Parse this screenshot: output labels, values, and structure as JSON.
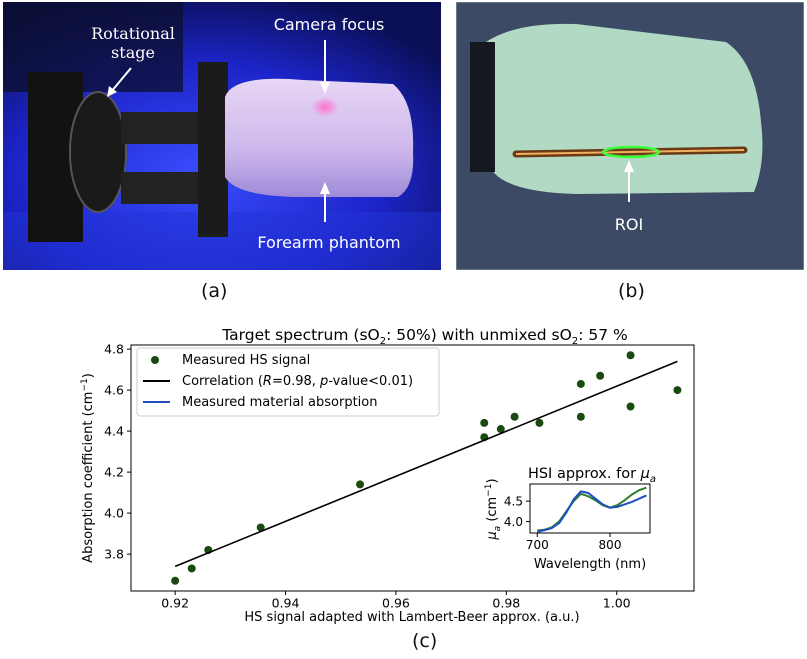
{
  "panel_a": {
    "label": "(a)",
    "annotations": {
      "rotational_stage_1": "Rotational",
      "rotational_stage_2": "stage",
      "camera_focus": "Camera focus",
      "forearm_phantom": "Forearm phantom"
    }
  },
  "panel_b": {
    "label": "(b)",
    "annotations": {
      "roi": "ROI"
    }
  },
  "panel_c": {
    "label": "(c)"
  },
  "colors": {
    "points": "#1a4a10",
    "correlation": "#000000",
    "material": "#1f4fbf",
    "inset_green": "#2e7d2e"
  },
  "chart_data": [
    {
      "type": "scatter",
      "title_parts": [
        "Target spectrum (sO",
        "2",
        ": 50%) with unmixed sO",
        "2",
        ": 57 %"
      ],
      "xlabel": "HS signal adapted with Lambert-Beer approx. (a.u.)",
      "ylabel_parts": [
        "Absorption coefficient (cm",
        "−1",
        ")"
      ],
      "xlim": [
        0.912,
        1.014
      ],
      "ylim": [
        3.62,
        4.82
      ],
      "xticks": [
        0.92,
        0.94,
        0.96,
        0.98,
        1.0
      ],
      "xtick_labels": [
        "0.92",
        "0.94",
        "0.96",
        "0.98",
        "1.00"
      ],
      "yticks": [
        3.8,
        4.0,
        4.2,
        4.4,
        4.6,
        4.8
      ],
      "ytick_labels": [
        "3.8",
        "4.0",
        "4.2",
        "4.4",
        "4.6",
        "4.8"
      ],
      "legend_position": "upper-left",
      "series": [
        {
          "name": "Measured HS signal",
          "kind": "scatter",
          "x": [
            0.92,
            0.923,
            0.926,
            0.9355,
            0.9535,
            0.976,
            0.976,
            0.979,
            0.9815,
            0.986,
            0.9935,
            0.9935,
            0.997,
            1.0025,
            1.0025,
            1.011
          ],
          "y": [
            3.67,
            3.73,
            3.82,
            3.93,
            4.14,
            4.37,
            4.44,
            4.41,
            4.47,
            4.44,
            4.47,
            4.63,
            4.67,
            4.77,
            4.52,
            4.6
          ]
        },
        {
          "name_parts": [
            "Correlation (",
            "R",
            "=0.98, ",
            "p",
            "-value<0.01)"
          ],
          "kind": "line",
          "x": [
            0.92,
            1.011
          ],
          "y": [
            3.74,
            4.74
          ]
        },
        {
          "name": "Measured material absorption",
          "kind": "line"
        }
      ]
    },
    {
      "type": "line",
      "title_parts": [
        "HSI approx. for ",
        "μ",
        "a"
      ],
      "xlabel": "Wavelength (nm)",
      "ylabel_parts": [
        "μ",
        "a",
        " (cm",
        "−1",
        ")"
      ],
      "xlim": [
        690,
        855
      ],
      "ylim": [
        3.72,
        4.92
      ],
      "xticks": [
        700,
        800
      ],
      "xtick_labels": [
        "700",
        "800"
      ],
      "yticks": [
        4.0,
        4.5
      ],
      "ytick_labels": [
        "4.0",
        "4.5"
      ],
      "series": [
        {
          "kind": "line",
          "color": "#2e7d2e",
          "x": [
            700,
            710,
            720,
            730,
            740,
            750,
            760,
            770,
            780,
            790,
            800,
            810,
            820,
            830,
            840,
            850
          ],
          "y": [
            3.78,
            3.8,
            3.86,
            4.0,
            4.25,
            4.5,
            4.68,
            4.62,
            4.52,
            4.4,
            4.34,
            4.4,
            4.52,
            4.66,
            4.77,
            4.83
          ]
        },
        {
          "kind": "line",
          "color": "#1f4fbf",
          "x": [
            700,
            710,
            720,
            730,
            740,
            750,
            760,
            770,
            780,
            790,
            800,
            810,
            820,
            830,
            840,
            850
          ],
          "y": [
            3.75,
            3.79,
            3.84,
            3.96,
            4.22,
            4.54,
            4.74,
            4.7,
            4.56,
            4.42,
            4.34,
            4.36,
            4.42,
            4.48,
            4.56,
            4.64
          ]
        }
      ]
    }
  ]
}
